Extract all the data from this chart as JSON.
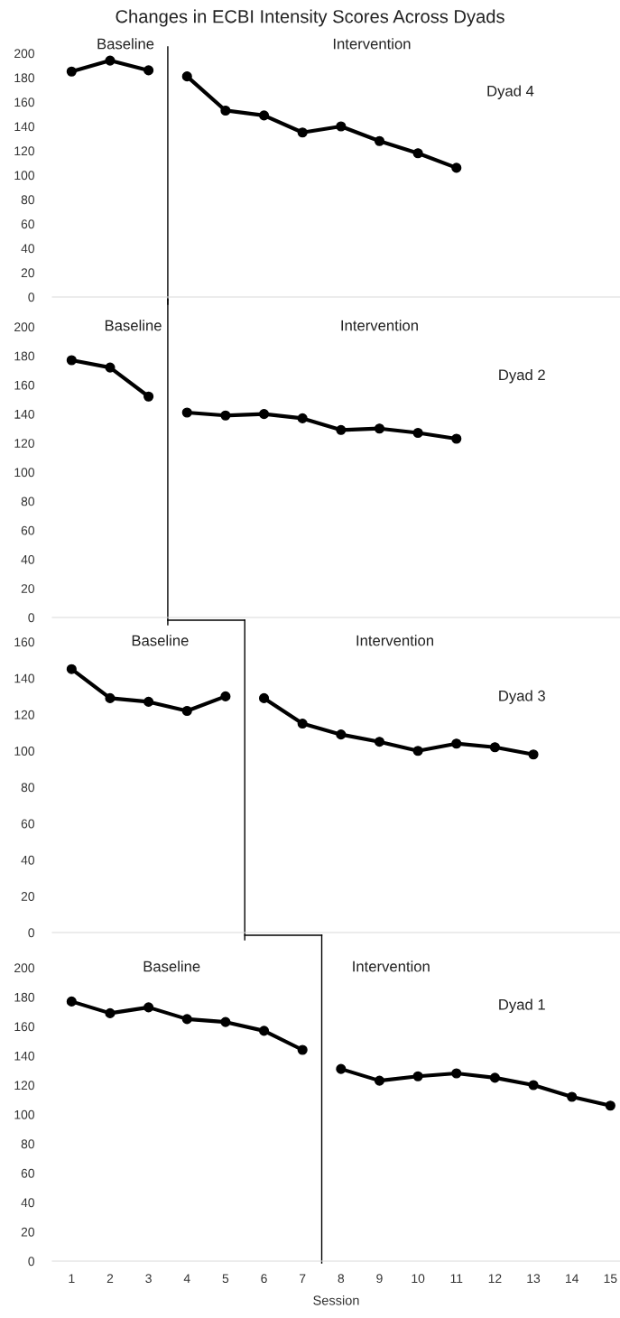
{
  "chart_data": [
    {
      "type": "line",
      "title": "Changes in ECBI Intensity Scores Across Dyads",
      "xlim": [
        0.5,
        15.25
      ],
      "ylim": [
        0,
        200
      ],
      "yticks": [
        0,
        20,
        40,
        60,
        80,
        100,
        120,
        140,
        160,
        180,
        200
      ],
      "tick_labels": "y",
      "marker": "circle",
      "line_style": "solid",
      "grid": false,
      "legend": false,
      "series": [
        {
          "color": "#000000",
          "x": [
            1,
            2,
            3
          ],
          "values": [
            185,
            194,
            186
          ]
        },
        {
          "color": "#000000",
          "x": [
            4,
            5,
            6,
            7,
            8,
            9,
            10,
            11
          ],
          "values": [
            181,
            153,
            149,
            135,
            140,
            128,
            118,
            106
          ]
        }
      ],
      "ref_lines": [
        {
          "axis": "x",
          "value": 3.5,
          "color": "#000000"
        }
      ],
      "annotations": [
        "Baseline",
        "Intervention",
        "Dyad 4"
      ]
    },
    {
      "type": "line",
      "xlim": [
        0.5,
        15.25
      ],
      "ylim": [
        0,
        200
      ],
      "yticks": [
        0,
        20,
        40,
        60,
        80,
        100,
        120,
        140,
        160,
        180,
        200
      ],
      "tick_labels": "y",
      "marker": "circle",
      "line_style": "solid",
      "grid": false,
      "legend": false,
      "series": [
        {
          "color": "#000000",
          "x": [
            1,
            2,
            3
          ],
          "values": [
            177,
            172,
            152
          ]
        },
        {
          "color": "#000000",
          "x": [
            4,
            5,
            6,
            7,
            8,
            9,
            10,
            11
          ],
          "values": [
            141,
            139,
            140,
            137,
            129,
            130,
            127,
            123
          ]
        }
      ],
      "ref_lines": [
        {
          "axis": "x",
          "value": 3.5,
          "color": "#000000"
        }
      ],
      "annotations": [
        "Baseline",
        "Intervention",
        "Dyad 2"
      ]
    },
    {
      "type": "line",
      "xlim": [
        0.5,
        15.25
      ],
      "ylim": [
        0,
        160
      ],
      "yticks": [
        0,
        20,
        40,
        60,
        80,
        100,
        120,
        140,
        160
      ],
      "tick_labels": "y",
      "marker": "circle",
      "line_style": "solid",
      "grid": false,
      "legend": false,
      "series": [
        {
          "color": "#000000",
          "x": [
            1,
            2,
            3,
            4,
            5
          ],
          "values": [
            145,
            129,
            127,
            122,
            130
          ]
        },
        {
          "color": "#000000",
          "x": [
            6,
            7,
            8,
            9,
            10,
            11,
            12,
            13
          ],
          "values": [
            129,
            115,
            109,
            105,
            100,
            104,
            102,
            98
          ]
        }
      ],
      "ref_lines": [
        {
          "axis": "x",
          "value": 5.5,
          "color": "#000000"
        }
      ],
      "annotations": [
        "Baseline",
        "Intervention",
        "Dyad 3"
      ]
    },
    {
      "type": "line",
      "xlabel": "Session",
      "xlim": [
        0.5,
        15.25
      ],
      "xticks": [
        1,
        2,
        3,
        4,
        5,
        6,
        7,
        8,
        9,
        10,
        11,
        12,
        13,
        14,
        15
      ],
      "ylim": [
        0,
        200
      ],
      "yticks": [
        0,
        20,
        40,
        60,
        80,
        100,
        120,
        140,
        160,
        180,
        200
      ],
      "marker": "circle",
      "line_style": "solid",
      "grid": false,
      "legend": false,
      "series": [
        {
          "color": "#000000",
          "x": [
            1,
            2,
            3,
            4,
            5,
            6,
            7
          ],
          "values": [
            177,
            169,
            173,
            165,
            163,
            157,
            144
          ]
        },
        {
          "color": "#000000",
          "x": [
            8,
            9,
            10,
            11,
            12,
            13,
            14,
            15
          ],
          "values": [
            131,
            123,
            126,
            128,
            125,
            120,
            112,
            106
          ]
        }
      ],
      "ref_lines": [
        {
          "axis": "x",
          "value": 7.5,
          "color": "#000000"
        }
      ],
      "annotations": [
        "Baseline",
        "Intervention",
        "Dyad 1"
      ]
    }
  ]
}
